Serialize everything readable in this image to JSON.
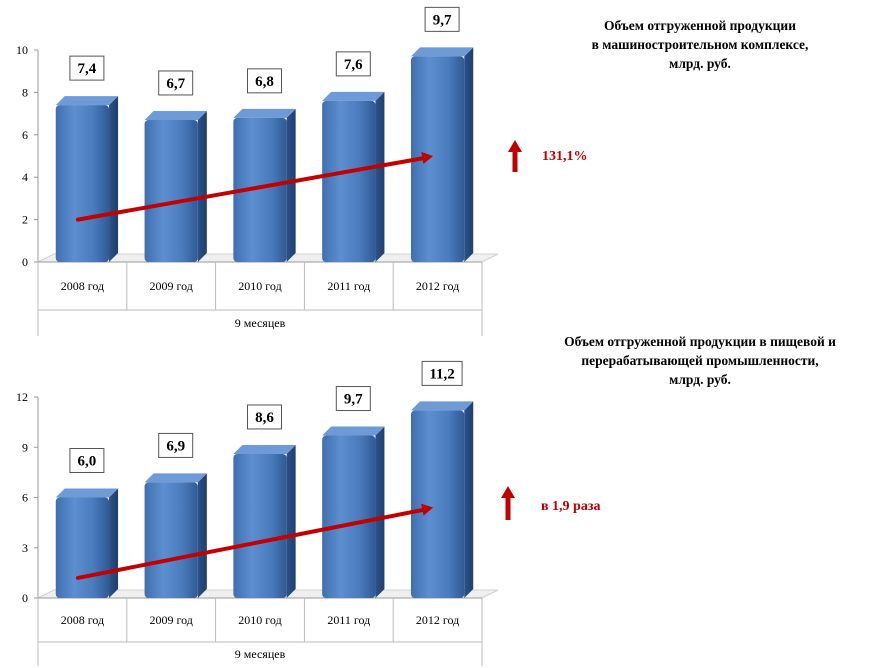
{
  "colors": {
    "bar": "#4f81bd",
    "trend": "#c00000",
    "accent": "#c00000"
  },
  "chart_data": [
    {
      "type": "bar",
      "title": [
        "Объем отгруженной продукции",
        "в машиностроительном комплексе,",
        "млрд. руб."
      ],
      "categories": [
        "2008 год",
        "2009 год",
        "2010 год",
        "2011 год",
        "2012 год"
      ],
      "group_label": "9 месяцев",
      "values": [
        7.4,
        6.7,
        6.8,
        7.6,
        9.7
      ],
      "data_labels": [
        "7,4",
        "6,7",
        "6,8",
        "7,6",
        "9,7"
      ],
      "ylim": [
        0,
        10
      ],
      "yticks": [
        0,
        2,
        4,
        6,
        8,
        10
      ],
      "trend": {
        "start": 2.0,
        "end": 5.0
      },
      "growth": "131,1%",
      "grid": false,
      "legend": "none"
    },
    {
      "type": "bar",
      "title": [
        "Объем отгруженной продукции в пищевой и",
        "перерабатывающей промышленности,",
        "млрд. руб."
      ],
      "categories": [
        "2008 год",
        "2009 год",
        "2010 год",
        "2011 год",
        "2012 год"
      ],
      "group_label": "9 месяцев",
      "values": [
        6.0,
        6.9,
        8.6,
        9.7,
        11.2
      ],
      "data_labels": [
        "6,0",
        "6,9",
        "8,6",
        "9,7",
        "11,2"
      ],
      "ylim": [
        0,
        12
      ],
      "yticks": [
        0,
        3,
        6,
        9,
        12
      ],
      "trend": {
        "start": 1.2,
        "end": 5.4
      },
      "growth": "в 1,9 раза",
      "grid": false,
      "legend": "none"
    }
  ]
}
